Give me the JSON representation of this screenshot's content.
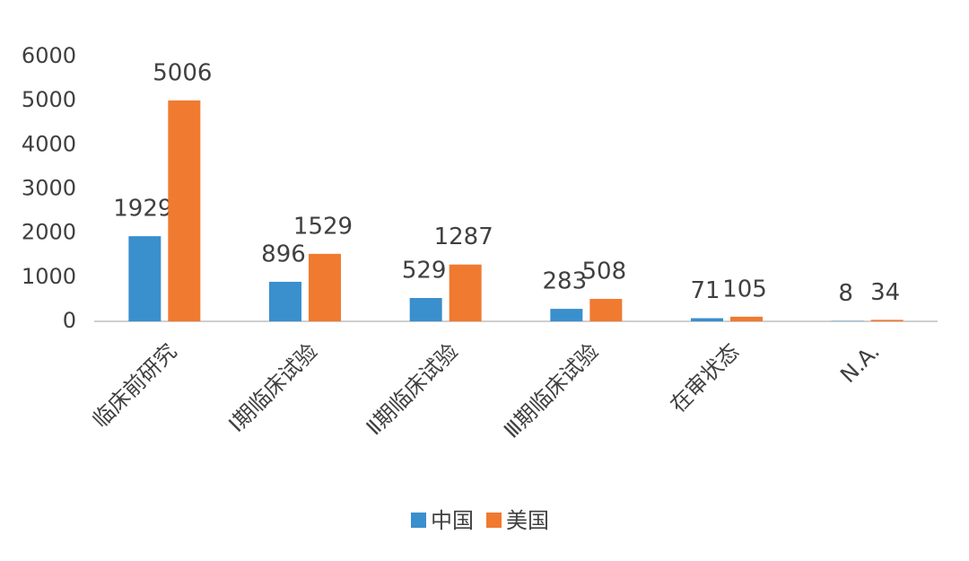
{
  "chart_data": {
    "type": "bar",
    "categories": [
      "临床前研究",
      "Ⅰ期临床试验",
      "Ⅱ期临床试验",
      "Ⅲ期临床试验",
      "在审状态",
      "N.A."
    ],
    "series": [
      {
        "name": "中国",
        "color": "#3a8fcd",
        "values": [
          1929,
          896,
          529,
          283,
          71,
          8
        ]
      },
      {
        "name": "美国",
        "color": "#f07a30",
        "values": [
          5006,
          1529,
          1287,
          508,
          105,
          34
        ]
      }
    ],
    "ylim": [
      0,
      6000
    ],
    "yticks": [
      0,
      1000,
      2000,
      3000,
      4000,
      5000,
      6000
    ],
    "grid": false,
    "legend": "bottom"
  }
}
